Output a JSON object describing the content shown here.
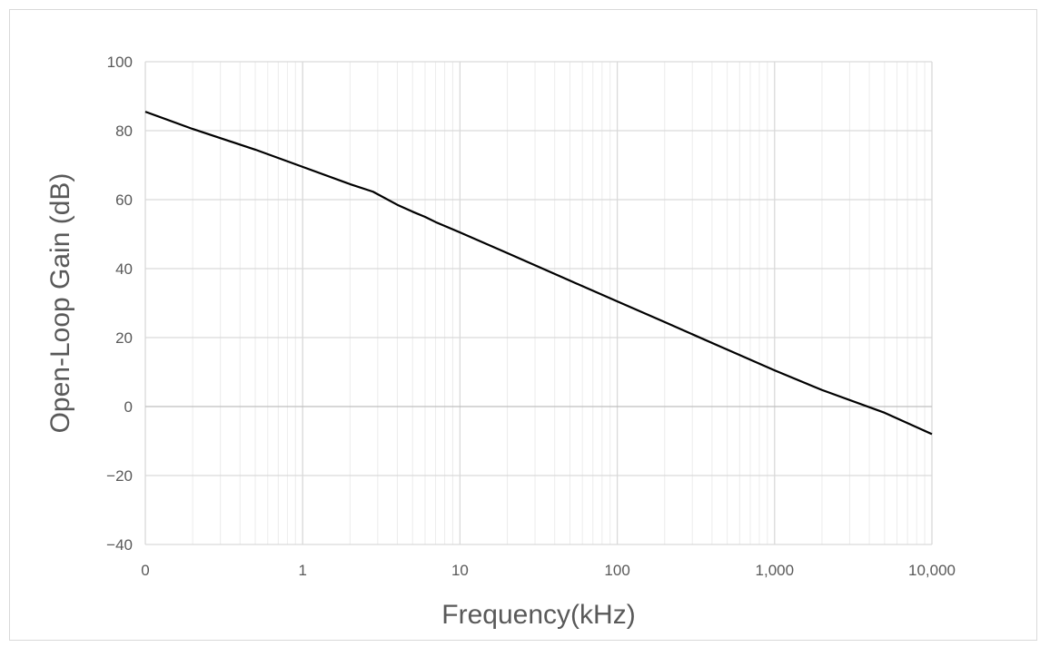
{
  "chart_data": {
    "type": "line",
    "title": "",
    "xlabel": "Frequency(kHz)",
    "ylabel": "Open-Loop Gain (dB)",
    "x_scale": "log",
    "xlim": [
      0.1,
      10000
    ],
    "ylim": [
      -40,
      100
    ],
    "x_ticks": [
      0.1,
      1,
      10,
      100,
      1000,
      10000
    ],
    "x_tick_labels": [
      "0",
      "1",
      "10",
      "100",
      "1,000",
      "10,000"
    ],
    "y_ticks": [
      -40,
      -20,
      0,
      20,
      40,
      60,
      80,
      100
    ],
    "y_tick_labels": [
      "−40",
      "−20",
      "0",
      "20",
      "40",
      "60",
      "80",
      "100"
    ],
    "grid": true,
    "legend": "none",
    "series": [
      {
        "color": "#000000",
        "x": [
          0.1,
          0.2,
          0.5,
          1,
          2,
          2.8,
          4,
          5,
          6,
          7,
          10,
          20,
          50,
          100,
          200,
          500,
          1000,
          2000,
          5000,
          10000
        ],
        "y": [
          85.5,
          80.5,
          74.5,
          69.5,
          64.5,
          62.3,
          58.5,
          56.5,
          55,
          53.5,
          50.5,
          44.5,
          36.5,
          30.5,
          24.5,
          16.5,
          10.5,
          4.8,
          -1.8,
          -8
        ]
      }
    ]
  }
}
